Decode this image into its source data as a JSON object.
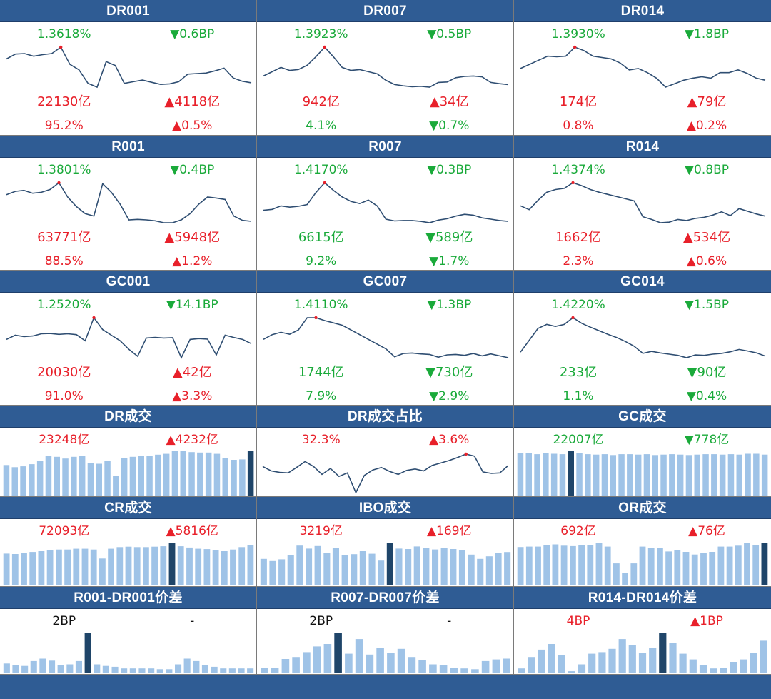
{
  "colors": {
    "header_bg": "#2f5c94",
    "line": "#2f4e72",
    "bar_light": "#9fc3e7",
    "bar_dark": "#1f4569",
    "up": "#e8202a",
    "down": "#1aaa3a",
    "peak_dot": "#e8202a"
  },
  "chart_data": [
    {
      "id": "dr001",
      "type": "line",
      "title": "DR001",
      "rate": "1.3618%",
      "rate_color": "green",
      "change": "▼0.6BP",
      "change_color": "green",
      "volume": "22130亿",
      "volume_color": "red",
      "vol_change": "▲4118亿",
      "vol_change_color": "red",
      "share": "95.2%",
      "share_color": "red",
      "share_change": "▲0.5%",
      "share_change_color": "red",
      "values": [
        1.34,
        1.349,
        1.35,
        1.345,
        1.348,
        1.35,
        1.3618,
        1.33,
        1.32,
        1.295,
        1.288,
        1.335,
        1.328,
        1.295,
        1.298,
        1.301,
        1.297,
        1.293,
        1.294,
        1.298,
        1.312,
        1.313,
        1.314,
        1.318,
        1.323,
        1.305,
        1.299,
        1.296
      ],
      "peak_index": 6
    },
    {
      "id": "dr007",
      "type": "line",
      "title": "DR007",
      "rate": "1.3923%",
      "rate_color": "green",
      "change": "▼0.5BP",
      "change_color": "green",
      "volume": "942亿",
      "volume_color": "red",
      "vol_change": "▲34亿",
      "vol_change_color": "red",
      "share": "4.1%",
      "share_color": "green",
      "share_change": "▼0.7%",
      "share_change_color": "green",
      "values": [
        1.325,
        1.335,
        1.345,
        1.338,
        1.34,
        1.35,
        1.37,
        1.3923,
        1.37,
        1.345,
        1.338,
        1.34,
        1.335,
        1.33,
        1.315,
        1.305,
        1.302,
        1.3,
        1.301,
        1.299,
        1.31,
        1.311,
        1.321,
        1.324,
        1.325,
        1.323,
        1.31,
        1.307,
        1.305
      ],
      "peak_index": 7
    },
    {
      "id": "dr014",
      "type": "line",
      "title": "DR014",
      "rate": "1.3930%",
      "rate_color": "green",
      "change": "▼1.8BP",
      "change_color": "green",
      "volume": "174亿",
      "volume_color": "red",
      "vol_change": "▲79亿",
      "vol_change_color": "red",
      "share": "0.8%",
      "share_color": "red",
      "share_change": "▲0.2%",
      "share_change_color": "red",
      "values": [
        1.362,
        1.368,
        1.374,
        1.38,
        1.379,
        1.38,
        1.393,
        1.388,
        1.38,
        1.378,
        1.376,
        1.37,
        1.36,
        1.362,
        1.356,
        1.348,
        1.335,
        1.34,
        1.345,
        1.348,
        1.35,
        1.348,
        1.356,
        1.356,
        1.36,
        1.355,
        1.348,
        1.345
      ],
      "peak_index": 6
    },
    {
      "id": "r001",
      "type": "line",
      "title": "R001",
      "rate": "1.3801%",
      "rate_color": "green",
      "change": "▼0.4BP",
      "change_color": "green",
      "volume": "63771亿",
      "volume_color": "red",
      "vol_change": "▲5948亿",
      "vol_change_color": "red",
      "share": "88.5%",
      "share_color": "red",
      "share_change": "▲1.2%",
      "share_change_color": "red",
      "values": [
        1.355,
        1.362,
        1.364,
        1.358,
        1.36,
        1.366,
        1.3801,
        1.35,
        1.33,
        1.315,
        1.31,
        1.378,
        1.36,
        1.335,
        1.302,
        1.303,
        1.302,
        1.3,
        1.296,
        1.296,
        1.302,
        1.315,
        1.335,
        1.35,
        1.348,
        1.345,
        1.31,
        1.301,
        1.299
      ],
      "peak_index": 6
    },
    {
      "id": "r007",
      "type": "line",
      "title": "R007",
      "rate": "1.4170%",
      "rate_color": "green",
      "change": "▼0.3BP",
      "change_color": "green",
      "volume": "6615亿",
      "volume_color": "green",
      "vol_change": "▼589亿",
      "vol_change_color": "green",
      "share": "9.2%",
      "share_color": "green",
      "share_change": "▼1.7%",
      "share_change_color": "green",
      "values": [
        1.355,
        1.357,
        1.365,
        1.362,
        1.364,
        1.368,
        1.395,
        1.417,
        1.4,
        1.385,
        1.375,
        1.37,
        1.378,
        1.365,
        1.335,
        1.331,
        1.332,
        1.332,
        1.33,
        1.327,
        1.333,
        1.336,
        1.342,
        1.346,
        1.344,
        1.338,
        1.335,
        1.332,
        1.33
      ],
      "peak_index": 7
    },
    {
      "id": "r014",
      "type": "line",
      "title": "R014",
      "rate": "1.4374%",
      "rate_color": "green",
      "change": "▼0.8BP",
      "change_color": "green",
      "volume": "1662亿",
      "volume_color": "red",
      "vol_change": "▲534亿",
      "vol_change_color": "red",
      "share": "2.3%",
      "share_color": "red",
      "share_change": "▲0.6%",
      "share_change_color": "red",
      "values": [
        1.395,
        1.388,
        1.405,
        1.42,
        1.425,
        1.427,
        1.4374,
        1.432,
        1.425,
        1.42,
        1.416,
        1.412,
        1.408,
        1.404,
        1.375,
        1.37,
        1.364,
        1.365,
        1.37,
        1.368,
        1.372,
        1.374,
        1.378,
        1.384,
        1.377,
        1.39,
        1.385,
        1.38,
        1.376
      ],
      "peak_index": 6
    },
    {
      "id": "gc001",
      "type": "line",
      "title": "GC001",
      "rate": "1.2520%",
      "rate_color": "green",
      "change": "▼14.1BP",
      "change_color": "green",
      "volume": "20030亿",
      "volume_color": "red",
      "vol_change": "▲42亿",
      "vol_change_color": "red",
      "share": "91.0%",
      "share_color": "red",
      "share_change": "▲3.3%",
      "share_change_color": "red",
      "values": [
        1.175,
        1.19,
        1.185,
        1.187,
        1.195,
        1.196,
        1.193,
        1.195,
        1.192,
        1.17,
        1.252,
        1.21,
        1.19,
        1.17,
        1.14,
        1.115,
        1.18,
        1.182,
        1.18,
        1.181,
        1.11,
        1.175,
        1.178,
        1.176,
        1.12,
        1.19,
        1.182,
        1.175,
        1.16
      ],
      "peak_index": 10
    },
    {
      "id": "gc007",
      "type": "line",
      "title": "GC007",
      "rate": "1.4110%",
      "rate_color": "green",
      "change": "▼1.3BP",
      "change_color": "green",
      "volume": "1744亿",
      "volume_color": "green",
      "vol_change": "▼730亿",
      "vol_change_color": "green",
      "share": "7.9%",
      "share_color": "green",
      "share_change": "▼2.9%",
      "share_change_color": "green",
      "values": [
        1.365,
        1.375,
        1.38,
        1.376,
        1.385,
        1.411,
        1.411,
        1.405,
        1.4,
        1.395,
        1.385,
        1.375,
        1.365,
        1.355,
        1.345,
        1.328,
        1.335,
        1.336,
        1.334,
        1.333,
        1.327,
        1.332,
        1.333,
        1.331,
        1.335,
        1.33,
        1.334,
        1.33,
        1.326
      ],
      "peak_index": 6
    },
    {
      "id": "gc014",
      "type": "line",
      "title": "GC014",
      "rate": "1.4220%",
      "rate_color": "green",
      "change": "▼1.5BP",
      "change_color": "green",
      "volume": "233亿",
      "volume_color": "green",
      "vol_change": "▼90亿",
      "vol_change_color": "green",
      "share": "1.1%",
      "share_color": "green",
      "share_change": "▼0.4%",
      "share_change_color": "green",
      "values": [
        1.335,
        1.365,
        1.395,
        1.405,
        1.4,
        1.405,
        1.422,
        1.408,
        1.398,
        1.389,
        1.38,
        1.372,
        1.362,
        1.35,
        1.332,
        1.337,
        1.333,
        1.33,
        1.327,
        1.321,
        1.328,
        1.327,
        1.33,
        1.332,
        1.336,
        1.342,
        1.338,
        1.333,
        1.325
      ],
      "peak_index": 6
    },
    {
      "id": "dr_turnover",
      "type": "bar",
      "title": "DR成交",
      "rate": "23248亿",
      "rate_color": "red",
      "change": "▲4232亿",
      "change_color": "red",
      "values": [
        0.71,
        0.66,
        0.68,
        0.73,
        0.8,
        0.92,
        0.9,
        0.86,
        0.9,
        0.92,
        0.76,
        0.74,
        0.81,
        0.46,
        0.88,
        0.9,
        0.93,
        0.93,
        0.95,
        0.97,
        1.03,
        1.03,
        1.01,
        1.0,
        1.0,
        0.97,
        0.87,
        0.83,
        0.84,
        1.03
      ],
      "highlight_index": 29
    },
    {
      "id": "dr_share",
      "type": "line",
      "title": "DR成交占比",
      "rate": "32.3%",
      "rate_color": "red",
      "change": "▲3.6%",
      "change_color": "red",
      "values": [
        29.8,
        28.9,
        28.6,
        28.5,
        29.6,
        30.8,
        29.8,
        28.2,
        29.4,
        27.8,
        28.5,
        24.5,
        28.0,
        29.1,
        29.6,
        28.8,
        28.2,
        29.0,
        29.3,
        28.9,
        30.0,
        30.5,
        31.0,
        31.6,
        32.3,
        31.9,
        28.7,
        28.4,
        28.5,
        30.0
      ],
      "peak_index": 24
    },
    {
      "id": "gc_turnover",
      "type": "bar",
      "title": "GC成交",
      "rate": "22007亿",
      "rate_color": "green",
      "change": "▼778亿",
      "change_color": "green",
      "values": [
        1.0,
        1.0,
        0.98,
        1.0,
        0.99,
        0.98,
        1.05,
        1.0,
        0.98,
        0.97,
        0.98,
        0.96,
        0.98,
        0.98,
        0.97,
        0.98,
        0.96,
        0.97,
        0.98,
        0.97,
        0.96,
        0.97,
        0.98,
        0.98,
        0.97,
        0.98,
        0.97,
        0.99,
        0.99,
        0.97
      ],
      "highlight_index": 6
    },
    {
      "id": "cr_turnover",
      "type": "bar",
      "title": "CR成交",
      "rate": "72093亿",
      "rate_color": "red",
      "change": "▲5816亿",
      "change_color": "red",
      "values": [
        0.78,
        0.77,
        0.8,
        0.82,
        0.84,
        0.86,
        0.88,
        0.88,
        0.9,
        0.9,
        0.88,
        0.66,
        0.9,
        0.94,
        0.95,
        0.94,
        0.94,
        0.95,
        0.96,
        1.05,
        0.96,
        0.93,
        0.9,
        0.89,
        0.86,
        0.84,
        0.88,
        0.94,
        0.98
      ],
      "highlight_index": 19
    },
    {
      "id": "ibo_turnover",
      "type": "bar",
      "title": "IBO成交",
      "rate": "3219亿",
      "rate_color": "red",
      "change": "▲169亿",
      "change_color": "red",
      "values": [
        0.62,
        0.57,
        0.61,
        0.71,
        0.93,
        0.86,
        0.92,
        0.75,
        0.87,
        0.7,
        0.73,
        0.8,
        0.74,
        0.58,
        1.0,
        0.86,
        0.85,
        0.91,
        0.88,
        0.84,
        0.87,
        0.85,
        0.83,
        0.72,
        0.62,
        0.68,
        0.75,
        0.78
      ],
      "highlight_index": 14
    },
    {
      "id": "or_turnover",
      "type": "bar",
      "title": "OR成交",
      "rate": "692亿",
      "rate_color": "red",
      "change": "▲76亿",
      "change_color": "red",
      "values": [
        0.87,
        0.88,
        0.88,
        0.91,
        0.93,
        0.9,
        0.89,
        0.92,
        0.91,
        0.96,
        0.88,
        0.5,
        0.28,
        0.5,
        0.88,
        0.84,
        0.85,
        0.77,
        0.8,
        0.76,
        0.7,
        0.73,
        0.76,
        0.88,
        0.88,
        0.9,
        0.97,
        0.92,
        0.96
      ],
      "highlight_index": 28
    },
    {
      "id": "r001_dr001_spread",
      "type": "bar",
      "title": "R001-DR001价差",
      "rate": "2BP",
      "rate_color": "black",
      "change": "-",
      "change_color": "black",
      "values": [
        0.24,
        0.2,
        0.18,
        0.3,
        0.36,
        0.31,
        0.21,
        0.22,
        0.3,
        1.0,
        0.22,
        0.18,
        0.16,
        0.12,
        0.12,
        0.12,
        0.12,
        0.1,
        0.1,
        0.22,
        0.36,
        0.3,
        0.2,
        0.16,
        0.12,
        0.12,
        0.12,
        0.12
      ],
      "highlight_index": 9
    },
    {
      "id": "r007_dr007_spread",
      "type": "bar",
      "title": "R007-DR007价差",
      "rate": "2BP",
      "rate_color": "black",
      "change": "-",
      "change_color": "black",
      "values": [
        0.14,
        0.14,
        0.35,
        0.4,
        0.52,
        0.66,
        0.72,
        1.0,
        0.48,
        0.84,
        0.46,
        0.62,
        0.5,
        0.6,
        0.4,
        0.32,
        0.22,
        0.2,
        0.14,
        0.12,
        0.1,
        0.3,
        0.34,
        0.36
      ],
      "highlight_index": 7
    },
    {
      "id": "r014_dr014_spread",
      "type": "bar",
      "title": "R014-DR014价差",
      "rate": "4BP",
      "rate_color": "red",
      "change": "▲1BP",
      "change_color": "red",
      "values": [
        0.12,
        0.4,
        0.58,
        0.72,
        0.44,
        0.05,
        0.22,
        0.48,
        0.52,
        0.6,
        0.84,
        0.7,
        0.5,
        0.62,
        1.0,
        0.74,
        0.48,
        0.34,
        0.2,
        0.12,
        0.14,
        0.28,
        0.34,
        0.5,
        0.8
      ],
      "highlight_index": 14
    }
  ]
}
